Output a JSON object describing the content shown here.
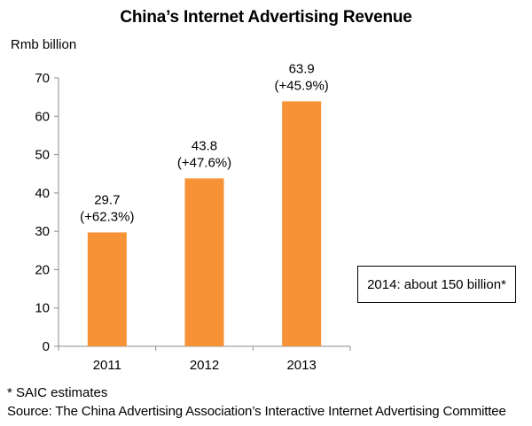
{
  "chart_data": {
    "type": "bar",
    "title": "China’s Internet Advertising Revenue",
    "ylabel": "Rmb billion",
    "xlabel": "",
    "categories": [
      "2011",
      "2012",
      "2013"
    ],
    "values": [
      29.7,
      43.8,
      63.9
    ],
    "data_labels": [
      [
        "29.7",
        "(+62.3%)"
      ],
      [
        "43.8",
        "(+47.6%)"
      ],
      [
        "63.9",
        "(+45.9%)"
      ]
    ],
    "ylim": [
      0,
      70
    ],
    "yticks": [
      0,
      10,
      20,
      30,
      40,
      50,
      60,
      70
    ],
    "grid": false,
    "bar_color": "#F79236",
    "annotation": "2014: about 150 billion*"
  },
  "footnote": "* SAIC estimates",
  "source": "Source: The China Advertising Association’s Interactive Internet Advertising Committee"
}
